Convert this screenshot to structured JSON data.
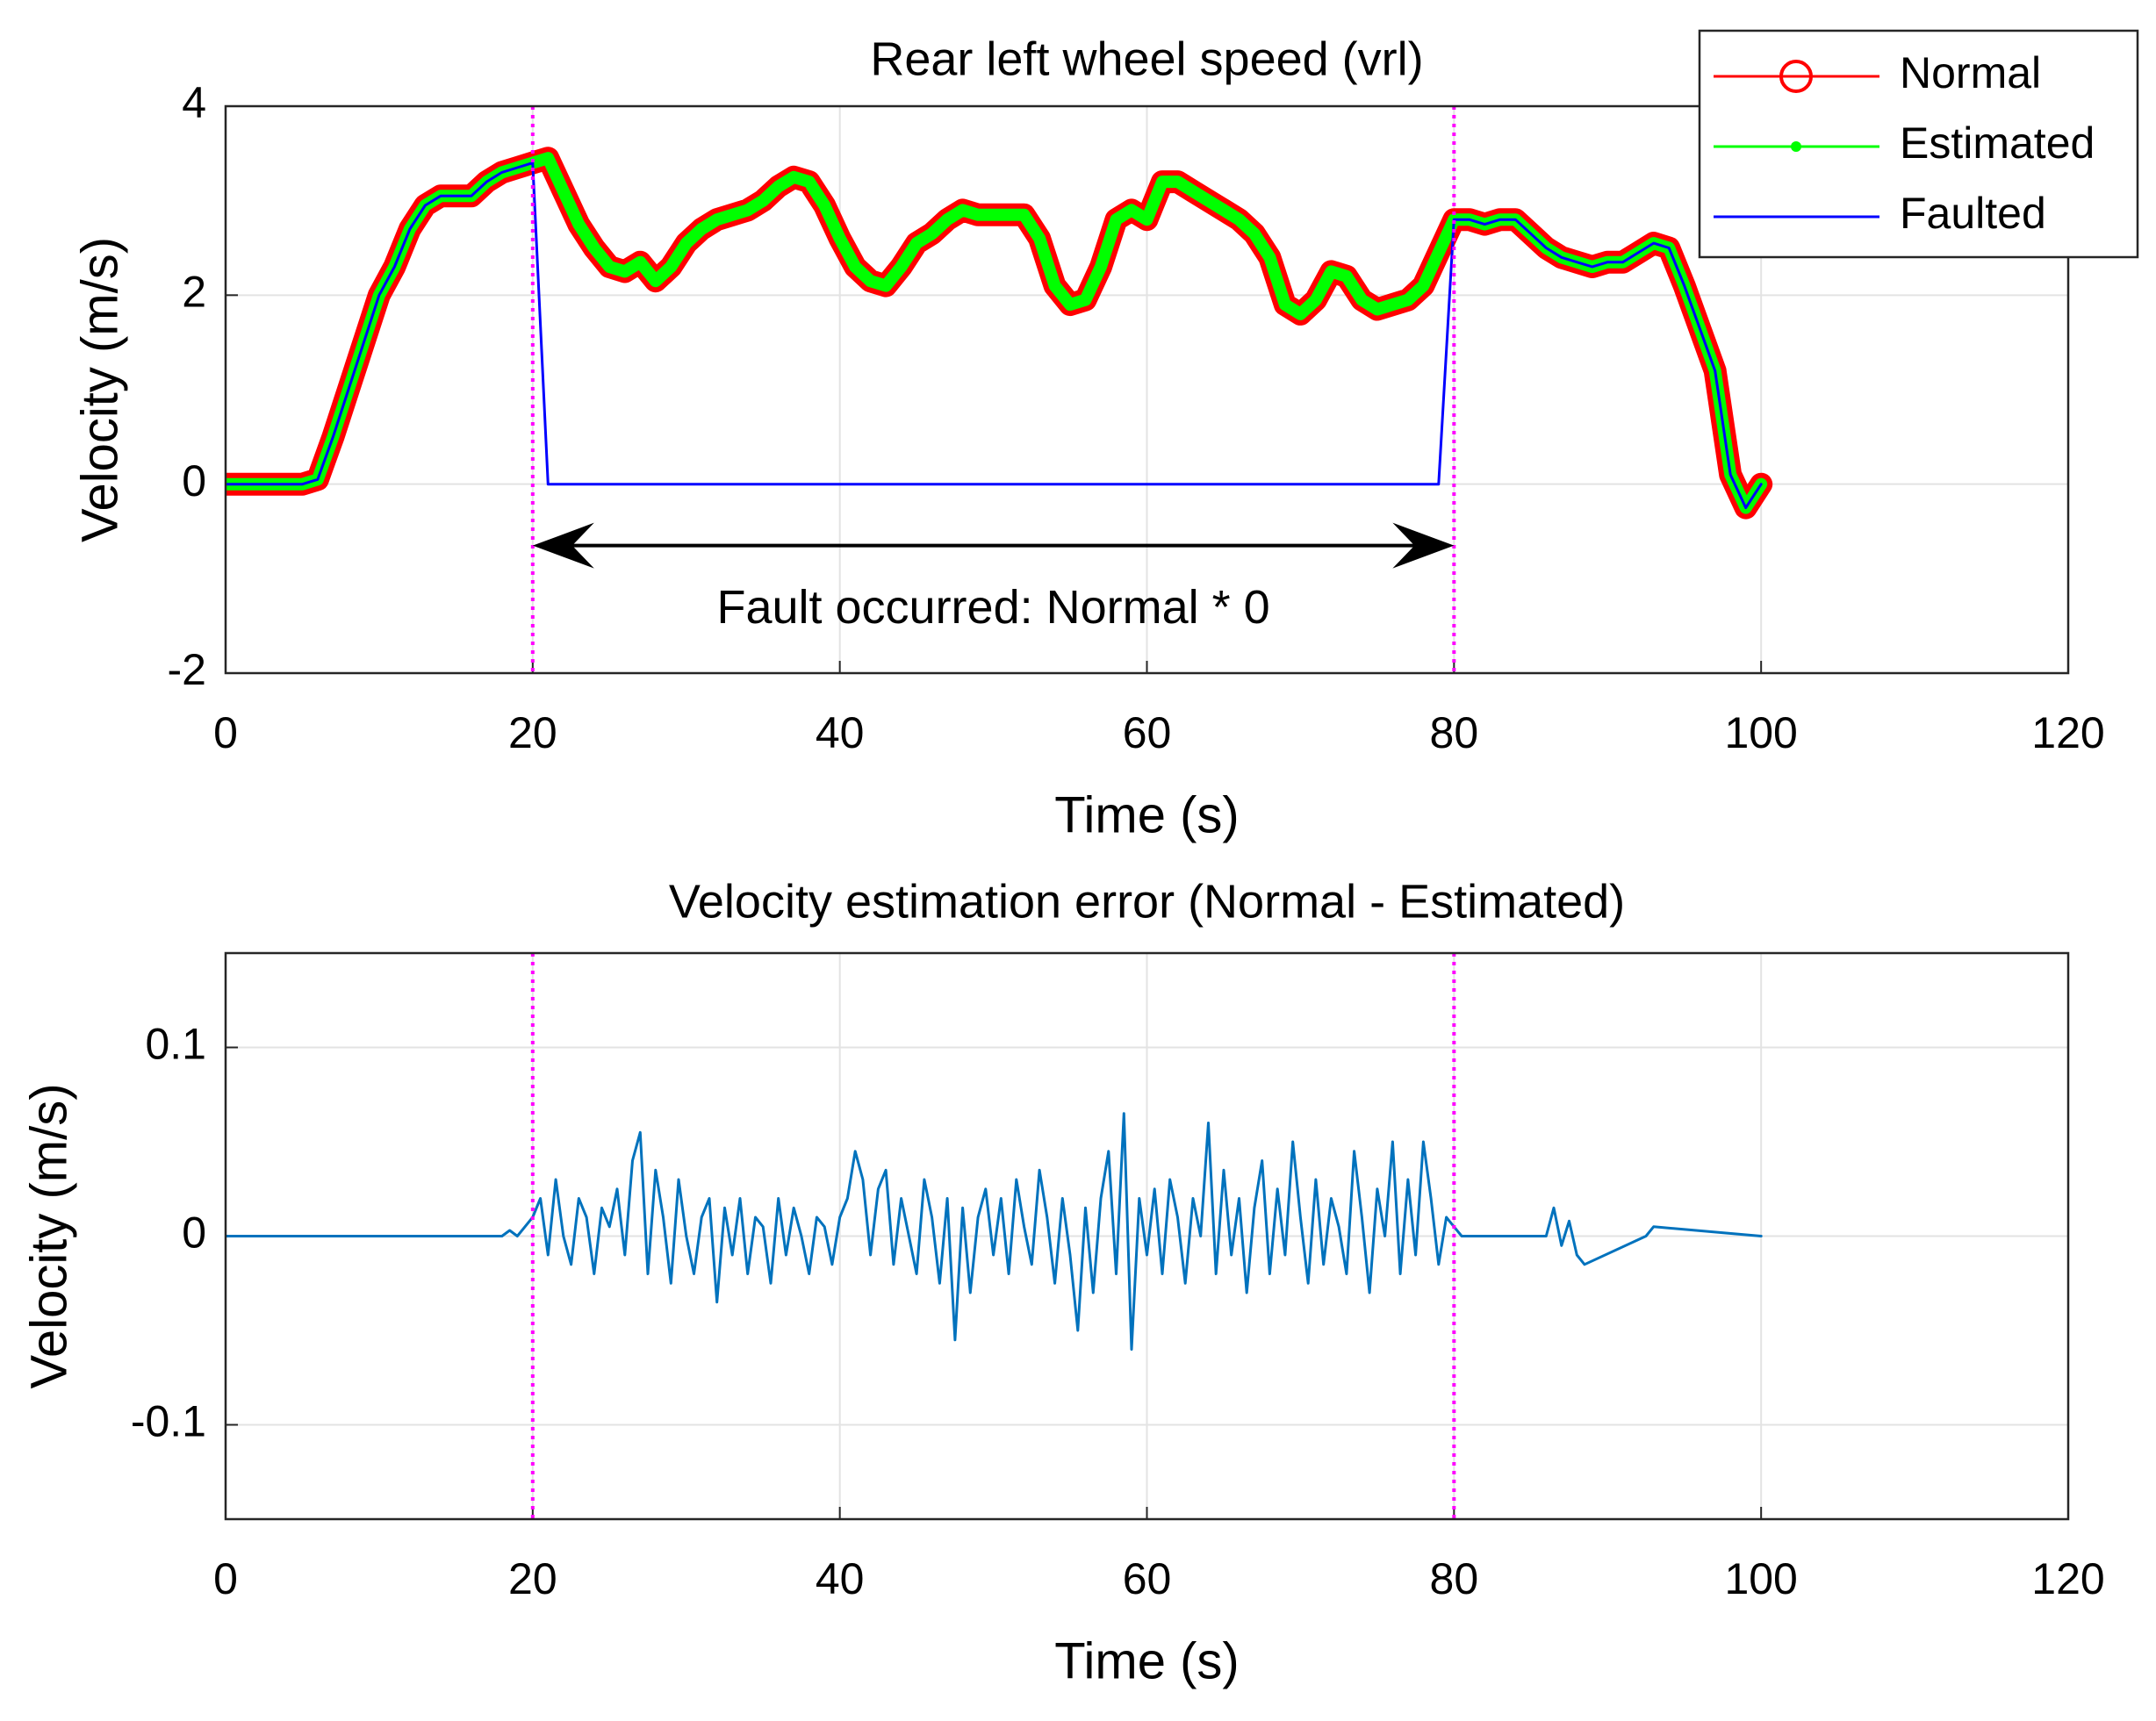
{
  "chart_data": [
    {
      "type": "line",
      "title": "Rear left wheel speed (vrl)",
      "xlabel": "Time (s)",
      "ylabel": "Velocity (m/s)",
      "x": [
        0,
        1,
        2,
        3,
        4,
        5,
        6,
        7,
        8,
        9,
        10,
        11,
        12,
        13,
        14,
        15,
        16,
        17,
        18,
        19,
        20,
        21,
        22,
        23,
        24,
        25,
        26,
        27,
        28,
        29,
        30,
        31,
        32,
        33,
        34,
        35,
        36,
        37,
        38,
        39,
        40,
        41,
        42,
        43,
        44,
        45,
        46,
        47,
        48,
        49,
        50,
        51,
        52,
        53,
        54,
        55,
        56,
        57,
        58,
        59,
        60,
        61,
        62,
        63,
        64,
        65,
        66,
        67,
        68,
        69,
        70,
        71,
        72,
        73,
        74,
        75,
        76,
        77,
        78,
        79,
        80,
        81,
        82,
        83,
        84,
        85,
        86,
        87,
        88,
        89,
        90,
        91,
        92,
        93,
        94,
        95,
        96,
        97,
        98,
        99,
        100
      ],
      "series": [
        {
          "name": "Normal",
          "color": "#ff0000",
          "marker": "o",
          "values": [
            0,
            0,
            0,
            0,
            0,
            0,
            0.05,
            0.5,
            1.0,
            1.5,
            2.0,
            2.3,
            2.7,
            2.95,
            3.05,
            3.05,
            3.05,
            3.2,
            3.3,
            3.35,
            3.4,
            3.45,
            3.1,
            2.75,
            2.5,
            2.3,
            2.25,
            2.35,
            2.15,
            2.3,
            2.55,
            2.7,
            2.8,
            2.85,
            2.9,
            3.0,
            3.15,
            3.25,
            3.2,
            2.95,
            2.6,
            2.3,
            2.15,
            2.1,
            2.3,
            2.55,
            2.65,
            2.8,
            2.9,
            2.85,
            2.85,
            2.85,
            2.85,
            2.6,
            2.1,
            1.9,
            1.95,
            2.3,
            2.8,
            2.9,
            2.8,
            3.2,
            3.2,
            3.1,
            3.0,
            2.9,
            2.8,
            2.65,
            2.4,
            1.9,
            1.8,
            1.95,
            2.25,
            2.2,
            1.95,
            1.85,
            1.9,
            1.95,
            2.1,
            2.45,
            2.8,
            2.8,
            2.75,
            2.8,
            2.8,
            2.65,
            2.5,
            2.4,
            2.35,
            2.3,
            2.35,
            2.35,
            2.45,
            2.55,
            2.5,
            2.1,
            1.65,
            1.2,
            0.1,
            -0.25,
            0
          ]
        },
        {
          "name": "Estimated",
          "color": "#00ff00",
          "marker": ".",
          "values": [
            0,
            0,
            0,
            0,
            0,
            0,
            0.05,
            0.5,
            1.0,
            1.5,
            2.0,
            2.3,
            2.7,
            2.95,
            3.05,
            3.05,
            3.05,
            3.2,
            3.3,
            3.35,
            3.4,
            3.45,
            3.1,
            2.75,
            2.5,
            2.3,
            2.25,
            2.35,
            2.15,
            2.3,
            2.55,
            2.7,
            2.8,
            2.85,
            2.9,
            3.0,
            3.15,
            3.25,
            3.2,
            2.95,
            2.6,
            2.3,
            2.15,
            2.1,
            2.3,
            2.55,
            2.65,
            2.8,
            2.9,
            2.85,
            2.85,
            2.85,
            2.85,
            2.6,
            2.1,
            1.9,
            1.95,
            2.3,
            2.8,
            2.9,
            2.8,
            3.2,
            3.2,
            3.1,
            3.0,
            2.9,
            2.8,
            2.65,
            2.4,
            1.9,
            1.8,
            1.95,
            2.25,
            2.2,
            1.95,
            1.85,
            1.9,
            1.95,
            2.1,
            2.45,
            2.8,
            2.8,
            2.75,
            2.8,
            2.8,
            2.65,
            2.5,
            2.4,
            2.35,
            2.3,
            2.35,
            2.35,
            2.45,
            2.55,
            2.5,
            2.1,
            1.65,
            1.2,
            0.1,
            -0.25,
            0
          ]
        },
        {
          "name": "Faulted",
          "color": "#0000ff",
          "values": [
            0,
            0,
            0,
            0,
            0,
            0,
            0.05,
            0.5,
            1.0,
            1.5,
            2.0,
            2.3,
            2.7,
            2.95,
            3.05,
            3.05,
            3.05,
            3.2,
            3.3,
            3.35,
            3.4,
            0,
            0,
            0,
            0,
            0,
            0,
            0,
            0,
            0,
            0,
            0,
            0,
            0,
            0,
            0,
            0,
            0,
            0,
            0,
            0,
            0,
            0,
            0,
            0,
            0,
            0,
            0,
            0,
            0,
            0,
            0,
            0,
            0,
            0,
            0,
            0,
            0,
            0,
            0,
            0,
            0,
            0,
            0,
            0,
            0,
            0,
            0,
            0,
            0,
            0,
            0,
            0,
            0,
            0,
            0,
            0,
            0,
            0,
            0,
            2.8,
            2.8,
            2.75,
            2.8,
            2.8,
            2.65,
            2.5,
            2.4,
            2.35,
            2.3,
            2.35,
            2.35,
            2.45,
            2.55,
            2.5,
            2.1,
            1.65,
            1.2,
            0.1,
            -0.25,
            0
          ]
        }
      ],
      "xlim": [
        0,
        120
      ],
      "ylim": [
        -2,
        4
      ],
      "xticks": [
        0,
        20,
        40,
        60,
        80,
        100,
        120
      ],
      "yticks": [
        -2,
        0,
        2,
        4
      ],
      "grid": true,
      "legend": "northeast",
      "vlines": {
        "values": [
          20,
          80
        ],
        "color": "#ff00ff"
      },
      "annotation": {
        "text": "Fault occurred: Normal * 0",
        "x": [
          20,
          80
        ],
        "y": -0.65
      }
    },
    {
      "type": "line",
      "title": "Velocity estimation error (Normal - Estimated)",
      "xlabel": "Time (s)",
      "ylabel": "Velocity (m/s)",
      "x": [
        0,
        18,
        18.5,
        19,
        20,
        20.5,
        21,
        21.5,
        22,
        22.5,
        23,
        23.5,
        24,
        24.5,
        25,
        25.5,
        26,
        26.5,
        27,
        27.5,
        28,
        28.5,
        29,
        29.5,
        30,
        30.5,
        31,
        31.5,
        32,
        32.5,
        33,
        33.5,
        34,
        34.5,
        35,
        35.5,
        36,
        36.5,
        37,
        37.5,
        38,
        38.5,
        39,
        39.5,
        40,
        40.5,
        41,
        41.5,
        42,
        42.5,
        43,
        43.5,
        44,
        44.5,
        45,
        45.5,
        46,
        46.5,
        47,
        47.5,
        48,
        48.5,
        49,
        49.5,
        50,
        50.5,
        51,
        51.5,
        52,
        52.5,
        53,
        53.5,
        54,
        54.5,
        55,
        55.5,
        56,
        56.5,
        57,
        57.5,
        58,
        58.5,
        59,
        59.5,
        60,
        60.5,
        61,
        61.5,
        62,
        62.5,
        63,
        63.5,
        64,
        64.5,
        65,
        65.5,
        66,
        66.5,
        67,
        67.5,
        68,
        68.5,
        69,
        69.5,
        70,
        70.5,
        71,
        71.5,
        72,
        72.5,
        73,
        73.5,
        74,
        74.5,
        75,
        75.5,
        76,
        76.5,
        77,
        77.5,
        78,
        78.5,
        79,
        79.5,
        80,
        80.5,
        86,
        86.5,
        87,
        87.5,
        88,
        88.5,
        92.5,
        93,
        100
      ],
      "series": [
        {
          "color": "#0072bd",
          "values": [
            0,
            0,
            0.003,
            0,
            0.01,
            0.02,
            -0.01,
            0.03,
            0,
            -0.015,
            0.02,
            0.01,
            -0.02,
            0.015,
            0.005,
            0.025,
            -0.01,
            0.04,
            0.055,
            -0.02,
            0.035,
            0.01,
            -0.025,
            0.03,
            0,
            -0.02,
            0.01,
            0.02,
            -0.035,
            0.015,
            -0.01,
            0.02,
            -0.02,
            0.01,
            0.005,
            -0.025,
            0.02,
            -0.01,
            0.015,
            0,
            -0.02,
            0.01,
            0.005,
            -0.015,
            0.01,
            0.02,
            0.045,
            0.03,
            -0.01,
            0.025,
            0.035,
            -0.015,
            0.02,
            0,
            -0.02,
            0.03,
            0.01,
            -0.025,
            0.02,
            -0.055,
            0.015,
            -0.03,
            0.01,
            0.025,
            -0.01,
            0.02,
            -0.02,
            0.03,
            0.005,
            -0.015,
            0.035,
            0.01,
            -0.025,
            0.02,
            -0.01,
            -0.05,
            0.015,
            -0.03,
            0.02,
            0.045,
            -0.02,
            0.065,
            -0.06,
            0.02,
            -0.01,
            0.025,
            -0.02,
            0.03,
            0.01,
            -0.025,
            0.02,
            0,
            0.06,
            -0.02,
            0.035,
            -0.01,
            0.02,
            -0.03,
            0.015,
            0.04,
            -0.02,
            0.025,
            -0.01,
            0.05,
            0.01,
            -0.025,
            0.03,
            -0.015,
            0.02,
            0.005,
            -0.02,
            0.045,
            0.01,
            -0.03,
            0.025,
            0,
            0.05,
            -0.02,
            0.03,
            -0.01,
            0.05,
            0.02,
            -0.015,
            0.01,
            0.005,
            0,
            0,
            0.015,
            -0.005,
            0.008,
            -0.01,
            -0.015,
            0,
            0.005,
            0
          ]
        }
      ],
      "xlim": [
        0,
        120
      ],
      "ylim": [
        -0.15,
        0.15
      ],
      "xticks": [
        0,
        20,
        40,
        60,
        80,
        100,
        120
      ],
      "yticks": [
        -0.1,
        0,
        0.1
      ],
      "grid": true,
      "vlines": {
        "values": [
          20,
          80
        ],
        "color": "#ff00ff"
      }
    }
  ]
}
